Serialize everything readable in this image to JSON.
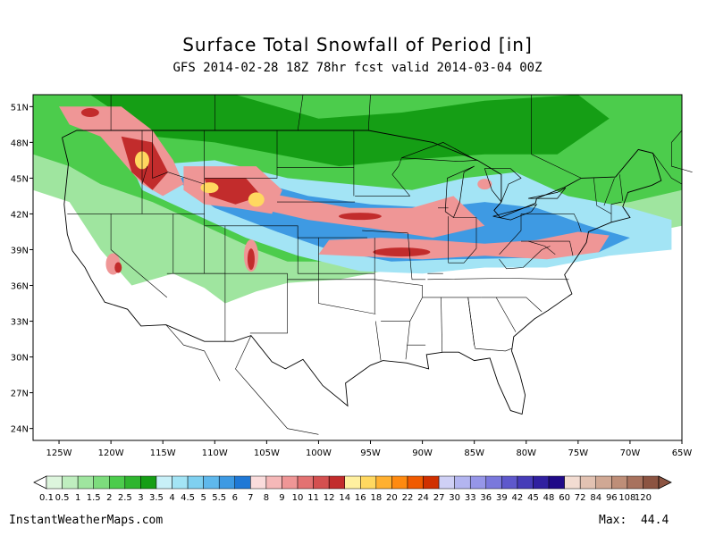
{
  "title": "Surface Total Snowfall of Period [in]",
  "subtitle": "GFS 2014-02-28 18Z 78hr fcst valid 2014-03-04 00Z",
  "site": "InstantWeatherMaps.com",
  "max_label": "Max:",
  "max_value": "44.4",
  "lat_labels": [
    "51N",
    "48N",
    "45N",
    "42N",
    "39N",
    "36N",
    "33N",
    "30N",
    "27N",
    "24N"
  ],
  "lon_labels": [
    "125W",
    "120W",
    "115W",
    "110W",
    "105W",
    "100W",
    "95W",
    "90W",
    "85W",
    "80W",
    "75W",
    "70W",
    "65W"
  ],
  "legend": {
    "labels": [
      "0.1",
      "0.5",
      "1",
      "1.5",
      "2",
      "2.5",
      "3",
      "3.5",
      "4",
      "4.5",
      "5",
      "5.5",
      "6",
      "7",
      "8",
      "9",
      "10",
      "11",
      "12",
      "14",
      "16",
      "18",
      "20",
      "22",
      "24",
      "27",
      "30",
      "33",
      "36",
      "39",
      "42",
      "45",
      "48",
      "60",
      "72",
      "84",
      "96",
      "108",
      "120"
    ],
    "colors": [
      "#ddf5dd",
      "#bfeebf",
      "#9fe59f",
      "#7ddc7d",
      "#4ccc4c",
      "#2fb52f",
      "#159e15",
      "#c8f0f8",
      "#a3e4f5",
      "#7fd0f0",
      "#5fb8ec",
      "#3e9ae3",
      "#1f78d6",
      "#fadcdc",
      "#f5b8b8",
      "#ef9696",
      "#e37272",
      "#d45050",
      "#c22c2c",
      "#fff0a0",
      "#ffd860",
      "#ffb030",
      "#ff8a10",
      "#f05a00",
      "#d03000",
      "#cfd0f5",
      "#b3b5f0",
      "#9696e8",
      "#7a78dc",
      "#5e58cc",
      "#463cb8",
      "#3020a0",
      "#200a88",
      "#f2dcd2",
      "#e2c2b2",
      "#d0a894",
      "#be8e78",
      "#a8725e",
      "#8c5442"
    ]
  },
  "colors": {
    "state_lines": "#000000",
    "green_light": "#9fe59f",
    "green_mid": "#4ccc4c",
    "green_dark": "#159e15",
    "blue_light": "#a3e4f5",
    "blue_mid": "#3e9ae3",
    "pink": "#ef9696",
    "red": "#c22c2c",
    "yellow": "#ffd860"
  }
}
